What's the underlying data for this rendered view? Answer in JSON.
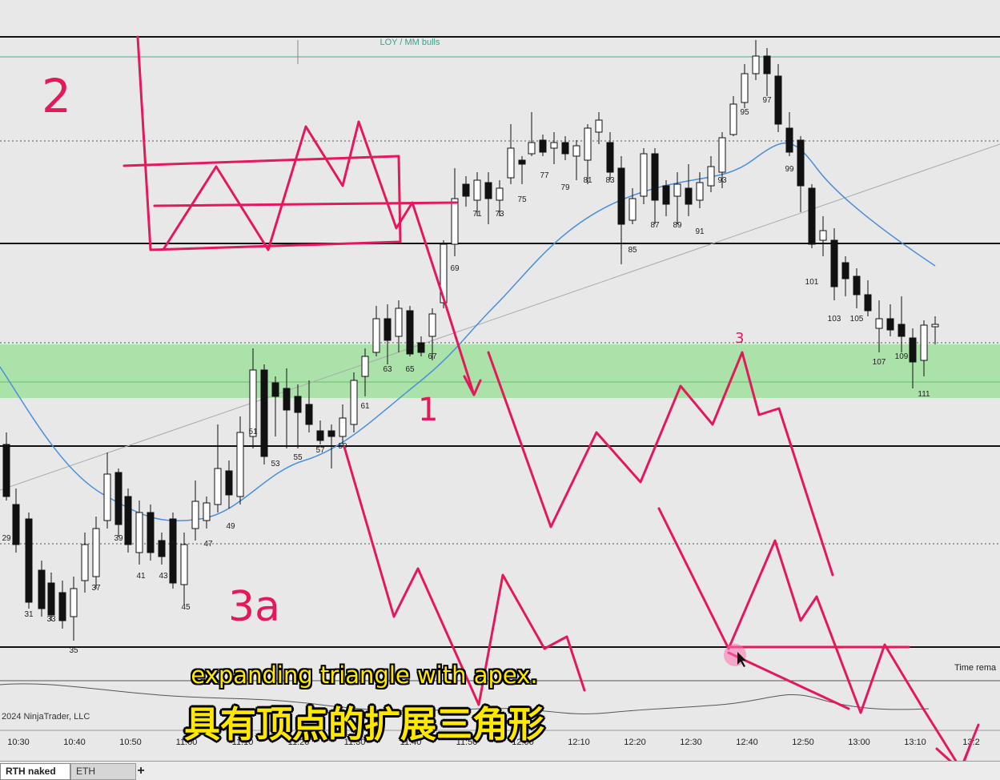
{
  "chart": {
    "indicator_label": "LOY / MM bulls",
    "time_remaining_label": "Time rema",
    "copyright": "2024 NinjaTrader, LLC",
    "time_labels": [
      "10:30",
      "10:40",
      "10:50",
      "11:00",
      "11:10",
      "11:20",
      "11:30",
      "11:40",
      "11:50",
      "12:00",
      "12:10",
      "12:20",
      "12:30",
      "12:40",
      "12:50",
      "13:00",
      "13:10",
      "13:2"
    ],
    "colors": {
      "background": "#e8e8e8",
      "zone": "#9fe09f",
      "ema": "#4a90d9",
      "ink": "#e4195a",
      "bull": "#ffffff",
      "bear": "#111111"
    }
  },
  "chart_data": {
    "type": "candlestick",
    "bar_numbers": [
      "29",
      "31",
      "33",
      "35",
      "37",
      "39",
      "41",
      "43",
      "45",
      "47",
      "49",
      "51",
      "53",
      "55",
      "57",
      "59",
      "61",
      "63",
      "65",
      "67",
      "69",
      "71",
      "73",
      "75",
      "77",
      "79",
      "81",
      "83",
      "85",
      "87",
      "89",
      "91",
      "93",
      "95",
      "97",
      "99",
      "101",
      "103",
      "105",
      "107",
      "109",
      "111"
    ]
  },
  "annotations": {
    "label_2": "2",
    "label_3a": "3a",
    "label_1": "1",
    "label_3": "3"
  },
  "subtitles": {
    "english": "expanding triangle with apex.",
    "chinese": "具有顶点的扩展三角形"
  },
  "tabs": {
    "active": "RTH naked",
    "inactive": "ETH",
    "add": "+"
  }
}
